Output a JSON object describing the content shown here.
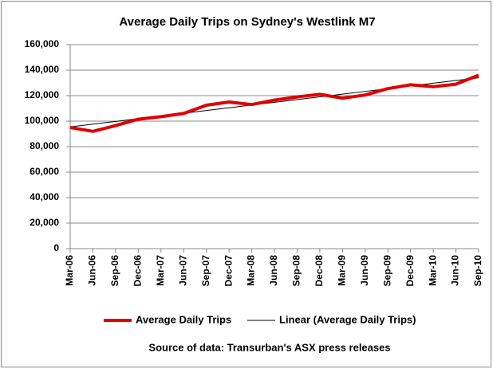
{
  "chart_data": {
    "type": "line",
    "title": "Average Daily Trips on Sydney's Westlink M7",
    "source": "Source of data: Transurban's ASX press releases",
    "categories": [
      "Mar-06",
      "Jun-06",
      "Sep-06",
      "Dec-06",
      "Mar-07",
      "Jun-07",
      "Sep-07",
      "Dec-07",
      "Mar-08",
      "Jun-08",
      "Sep-08",
      "Dec-08",
      "Mar-09",
      "Jun-09",
      "Sep-09",
      "Dec-09",
      "Mar-10",
      "Jun-10",
      "Sep-10"
    ],
    "series": [
      {
        "name": "Average Daily Trips",
        "color": "#e00000",
        "width": 4,
        "values": [
          95000,
          92000,
          96500,
          101500,
          103500,
          106000,
          112500,
          115000,
          113000,
          116500,
          119000,
          121000,
          118000,
          120500,
          125500,
          128500,
          127000,
          129000,
          136000
        ]
      },
      {
        "name": "Linear (Average Daily Trips)",
        "color": "#000000",
        "width": 1,
        "values": [
          95500,
          97640,
          99780,
          101920,
          104060,
          106200,
          108340,
          110480,
          112620,
          114760,
          116900,
          119040,
          121180,
          123320,
          125460,
          127600,
          129740,
          131880,
          134020
        ]
      }
    ],
    "ylim": [
      0,
      160000
    ],
    "yticks": [
      0,
      {
        "value": 20000,
        "label": "20,000"
      },
      {
        "value": 40000,
        "label": "40,000"
      },
      {
        "value": 60000,
        "label": "60,000"
      },
      {
        "value": 80000,
        "label": "80,000"
      },
      {
        "value": 100000,
        "label": "100,000"
      },
      {
        "value": 120000,
        "label": "120,000"
      },
      {
        "value": 140000,
        "label": "140,000"
      },
      {
        "value": 160000,
        "label": "160,000"
      }
    ],
    "grid": true,
    "legend": "bottom"
  }
}
